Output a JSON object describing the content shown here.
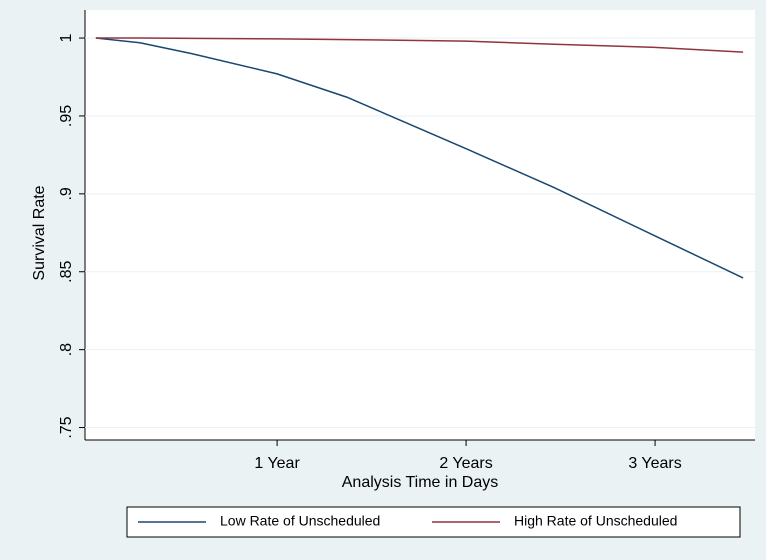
{
  "chart_data": {
    "type": "line",
    "x_label": "Analysis Time in Days",
    "y_label": "Survival Rate",
    "x": [
      15,
      100,
      200,
      365,
      500,
      730,
      900,
      1095,
      1265
    ],
    "series": [
      {
        "name": "Low Rate of Unscheduled",
        "color": "#1a476f",
        "values": [
          1.0,
          0.997,
          0.99,
          0.977,
          0.962,
          0.929,
          0.904,
          0.873,
          0.846
        ]
      },
      {
        "name": "High Rate of Unscheduled",
        "color": "#90353b",
        "values": [
          1.0,
          1.0,
          0.9998,
          0.9995,
          0.999,
          0.998,
          0.996,
          0.994,
          0.991
        ]
      }
    ],
    "xlim": [
      -6,
      1288
    ],
    "xticks": [
      {
        "value": 365,
        "label": "1 Year"
      },
      {
        "value": 730,
        "label": "2 Years"
      },
      {
        "value": 1095,
        "label": "3 Years"
      }
    ],
    "ylim": [
      0.742,
      1.018
    ],
    "yticks": [
      {
        "value": 0.75,
        "label": ".75"
      },
      {
        "value": 0.8,
        "label": ".8"
      },
      {
        "value": 0.85,
        "label": ".85"
      },
      {
        "value": 0.9,
        "label": ".9"
      },
      {
        "value": 0.95,
        "label": ".95"
      },
      1
    ],
    "grid": true,
    "legend": "bottom"
  }
}
